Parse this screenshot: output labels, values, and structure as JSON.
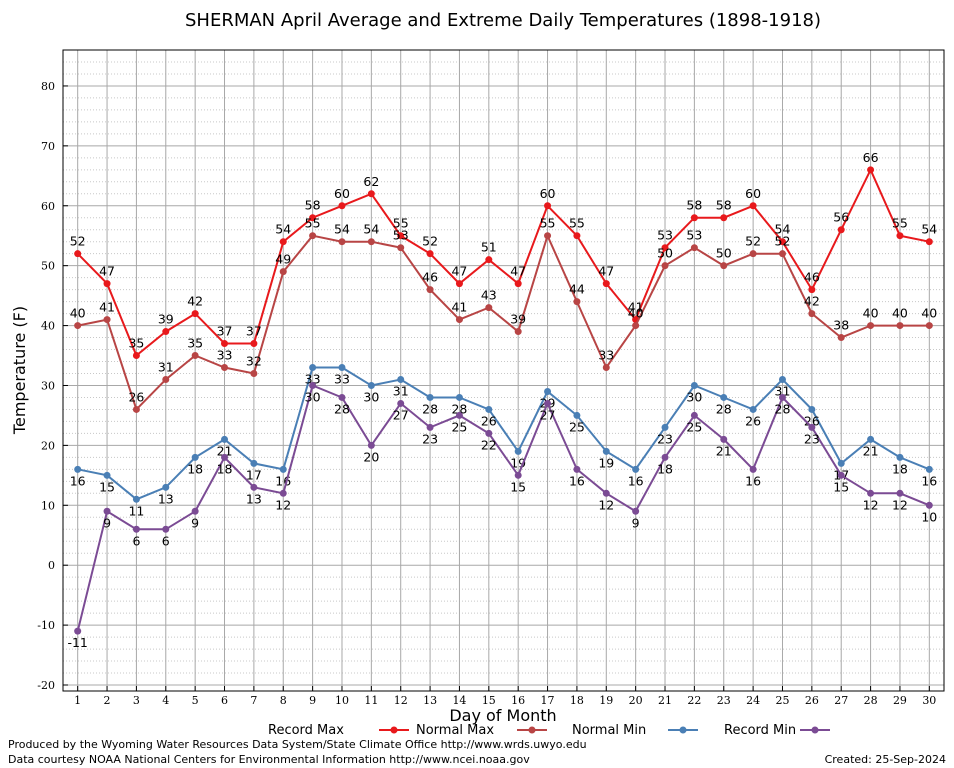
{
  "chart_data": {
    "type": "line",
    "title": "SHERMAN April Average and Extreme Daily Temperatures (1898-1918)",
    "xlabel": "Day of Month",
    "ylabel": "Temperature (F)",
    "xlim": [
      0.5,
      30.5
    ],
    "ylim": [
      -21,
      86
    ],
    "y_ticks": [
      -20,
      -10,
      0,
      10,
      20,
      30,
      40,
      50,
      60,
      70,
      80
    ],
    "x": [
      1,
      2,
      3,
      4,
      5,
      6,
      7,
      8,
      9,
      10,
      11,
      12,
      13,
      14,
      15,
      16,
      17,
      18,
      19,
      20,
      21,
      22,
      23,
      24,
      25,
      26,
      27,
      28,
      29,
      30
    ],
    "grid": true,
    "legend_position": "bottom",
    "series": [
      {
        "name": "Record Max",
        "color": "#e8191c",
        "label_pos": "above",
        "values": [
          52,
          47,
          35,
          39,
          42,
          37,
          37,
          54,
          58,
          60,
          62,
          55,
          52,
          47,
          51,
          47,
          60,
          55,
          47,
          41,
          53,
          58,
          58,
          60,
          54,
          46,
          56,
          66,
          55,
          54
        ]
      },
      {
        "name": "Normal Max",
        "color": "#b84545",
        "label_pos": "above",
        "values": [
          40,
          41,
          26,
          31,
          35,
          33,
          32,
          49,
          55,
          54,
          54,
          53,
          46,
          41,
          43,
          39,
          55,
          44,
          33,
          40,
          50,
          53,
          50,
          52,
          52,
          42,
          38,
          40,
          40,
          40
        ]
      },
      {
        "name": "Normal Min",
        "color": "#4a7fb5",
        "label_pos": "below",
        "values": [
          16,
          15,
          11,
          13,
          18,
          21,
          17,
          16,
          33,
          33,
          30,
          31,
          28,
          28,
          26,
          19,
          29,
          25,
          19,
          16,
          23,
          30,
          28,
          26,
          31,
          26,
          17,
          21,
          18,
          16
        ]
      },
      {
        "name": "Record Min",
        "color": "#7b4b94",
        "label_pos": "below",
        "values": [
          -11,
          9,
          6,
          6,
          9,
          18,
          13,
          12,
          30,
          28,
          20,
          27,
          23,
          25,
          22,
          15,
          27,
          16,
          12,
          9,
          18,
          25,
          21,
          16,
          28,
          23,
          15,
          12,
          12,
          10
        ]
      }
    ]
  },
  "footer": {
    "producer": "Produced by the Wyoming Water Resources Data System/State Climate Office http://www.wrds.uwyo.edu",
    "courtesy": "Data courtesy NOAA National Centers for Environmental Information http://www.ncei.noaa.gov",
    "created": "Created:  25-Sep-2024"
  }
}
